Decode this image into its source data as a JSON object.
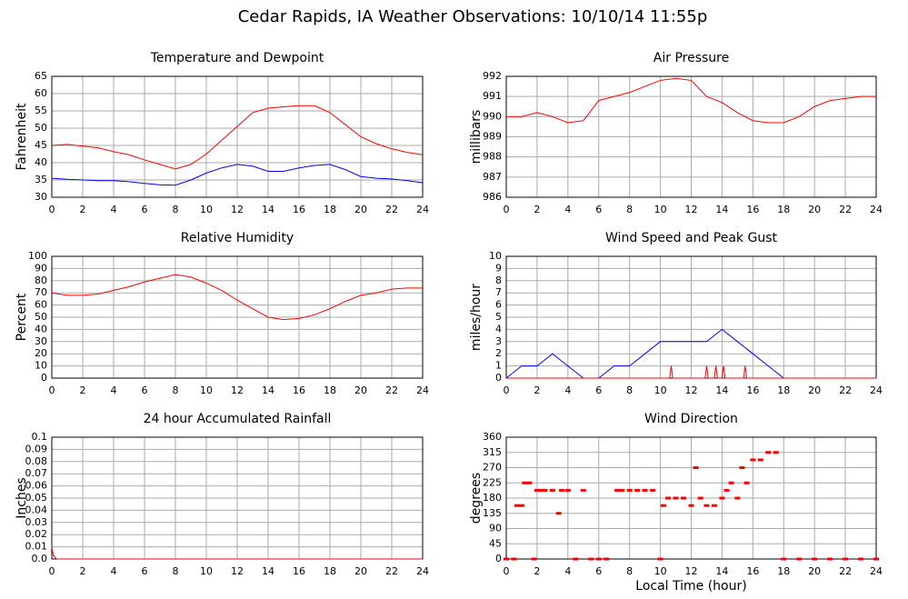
{
  "title": "Cedar Rapids, IA Weather Observations: 10/10/14 11:55p",
  "chart_data": [
    {
      "type": "line",
      "title": "Temperature and Dewpoint",
      "ylabel": "Fahrenheit",
      "x": [
        0,
        1,
        2,
        3,
        4,
        5,
        6,
        7,
        8,
        9,
        10,
        11,
        12,
        13,
        14,
        15,
        16,
        17,
        18,
        19,
        20,
        21,
        22,
        23,
        24
      ],
      "series": [
        {
          "color": "#ff0000",
          "values": [
            45,
            45.3,
            44.8,
            44.3,
            43.2,
            42.3,
            40.8,
            39.5,
            38.2,
            39.5,
            42.5,
            46.5,
            50.5,
            54.5,
            55.8,
            56.2,
            56.5,
            56.5,
            54.5,
            51,
            47.5,
            45.5,
            44,
            43,
            42.3
          ]
        },
        {
          "color": "#0000ff",
          "values": [
            35.5,
            35.2,
            35,
            34.8,
            34.8,
            34.5,
            34,
            33.6,
            33.5,
            35,
            37,
            38.5,
            39.5,
            39,
            37.5,
            37.5,
            38.5,
            39.2,
            39.5,
            38,
            36,
            35.5,
            35.3,
            34.8,
            34.2
          ]
        }
      ],
      "xlim": [
        0,
        24
      ],
      "xticks": [
        0,
        2,
        4,
        6,
        8,
        10,
        12,
        14,
        16,
        18,
        20,
        22,
        24
      ],
      "ylim": [
        30,
        65
      ],
      "yticks": [
        30,
        35,
        40,
        45,
        50,
        55,
        60,
        65
      ],
      "grid": true
    },
    {
      "type": "line",
      "title": "Air Pressure",
      "ylabel": "millibars",
      "x": [
        0,
        1,
        2,
        3,
        4,
        5,
        6,
        7,
        8,
        9,
        10,
        11,
        12,
        13,
        14,
        15,
        16,
        17,
        18,
        19,
        20,
        21,
        22,
        23,
        24
      ],
      "series": [
        {
          "color": "#ff0000",
          "values": [
            990,
            990,
            990.2,
            990,
            989.7,
            989.8,
            990.8,
            991,
            991.2,
            991.5,
            991.8,
            991.9,
            991.8,
            991,
            990.7,
            990.2,
            989.8,
            989.7,
            989.7,
            990,
            990.5,
            990.8,
            990.9,
            991,
            991
          ]
        }
      ],
      "xlim": [
        0,
        24
      ],
      "xticks": [
        0,
        2,
        4,
        6,
        8,
        10,
        12,
        14,
        16,
        18,
        20,
        22,
        24
      ],
      "ylim": [
        986,
        992
      ],
      "yticks": [
        986,
        987,
        988,
        989,
        990,
        991,
        992
      ],
      "grid": true
    },
    {
      "type": "line",
      "title": "Relative Humidity",
      "ylabel": "Percent",
      "x": [
        0,
        1,
        2,
        3,
        4,
        5,
        6,
        7,
        8,
        9,
        10,
        11,
        12,
        13,
        14,
        15,
        16,
        17,
        18,
        19,
        20,
        21,
        22,
        23,
        24
      ],
      "series": [
        {
          "color": "#ff0000",
          "values": [
            70,
            68,
            68,
            69,
            72,
            75,
            79,
            82,
            85,
            83,
            78,
            72,
            64,
            57,
            50,
            48,
            49,
            52,
            57,
            63,
            68,
            70,
            73,
            74,
            74
          ]
        }
      ],
      "xlim": [
        0,
        24
      ],
      "xticks": [
        0,
        2,
        4,
        6,
        8,
        10,
        12,
        14,
        16,
        18,
        20,
        22,
        24
      ],
      "ylim": [
        0,
        100
      ],
      "yticks": [
        0,
        10,
        20,
        30,
        40,
        50,
        60,
        70,
        80,
        90,
        100
      ],
      "grid": true
    },
    {
      "type": "line",
      "title": "Wind Speed and Peak Gust",
      "ylabel": "miles/hour",
      "series": [
        {
          "color": "#0000ff",
          "x": [
            0,
            1,
            2,
            3,
            4,
            5,
            6,
            7,
            8,
            9,
            10,
            11,
            12,
            13,
            14,
            15,
            16,
            17,
            18,
            19,
            20,
            21,
            22,
            23,
            24
          ],
          "values": [
            0,
            1,
            1,
            2,
            1,
            0,
            0,
            1,
            1,
            2,
            3,
            3,
            3,
            3,
            4,
            3,
            2,
            1,
            0,
            0,
            0,
            0,
            0,
            0,
            0
          ]
        },
        {
          "color": "#ff0000",
          "x": [
            0,
            10.6,
            10.7,
            10.8,
            12.9,
            13,
            13.1,
            13.5,
            13.6,
            13.7,
            14,
            14.1,
            14.2,
            15.4,
            15.5,
            15.6,
            24
          ],
          "values": [
            0,
            0,
            1,
            0,
            0,
            1,
            0,
            0,
            1,
            0,
            0,
            1,
            0,
            0,
            1,
            0,
            0
          ]
        }
      ],
      "xlim": [
        0,
        24
      ],
      "xticks": [
        0,
        2,
        4,
        6,
        8,
        10,
        12,
        14,
        16,
        18,
        20,
        22,
        24
      ],
      "ylim": [
        0,
        10
      ],
      "yticks": [
        0,
        1,
        2,
        3,
        4,
        5,
        6,
        7,
        8,
        9,
        10
      ],
      "grid": true
    },
    {
      "type": "line",
      "title": "24 hour Accumulated Rainfall",
      "ylabel": "Inches",
      "x": [
        0,
        0.1,
        0.3,
        24
      ],
      "series": [
        {
          "color": "#ff0000",
          "values": [
            0.01,
            0.003,
            0,
            0
          ]
        }
      ],
      "xlim": [
        0,
        24
      ],
      "xticks": [
        0,
        2,
        4,
        6,
        8,
        10,
        12,
        14,
        16,
        18,
        20,
        22,
        24
      ],
      "ylim": [
        0,
        0.1
      ],
      "yticks": [
        {
          "value": 0,
          "label": "0.0"
        },
        0.01,
        0.02,
        0.03,
        0.04,
        0.05,
        0.06,
        0.07,
        0.08,
        0.09,
        0.1
      ],
      "grid": true
    },
    {
      "type": "scatter",
      "title": "Wind Direction",
      "ylabel": "degrees",
      "xlabel": "Local Time (hour)",
      "x": [
        0,
        0.5,
        0.7,
        1,
        1.2,
        1.5,
        1.8,
        2,
        2.3,
        2.5,
        3,
        3.4,
        3.6,
        4,
        4.5,
        5,
        5.5,
        6,
        6.5,
        7.2,
        7.5,
        8,
        8.5,
        9,
        9.5,
        10,
        10.2,
        10.5,
        11,
        11.5,
        12,
        12.3,
        12.6,
        13,
        13.5,
        14,
        14.3,
        14.6,
        15,
        15.3,
        15.6,
        16,
        16.5,
        17,
        17.5,
        18,
        19,
        20,
        21,
        22,
        23,
        24
      ],
      "series": [
        {
          "color": "#ff0000",
          "values": [
            0,
            0,
            158,
            158,
            225,
            225,
            0,
            203,
            203,
            203,
            203,
            135,
            203,
            203,
            0,
            203,
            0,
            0,
            0,
            203,
            203,
            203,
            203,
            203,
            203,
            0,
            158,
            180,
            180,
            180,
            158,
            270,
            180,
            158,
            158,
            180,
            203,
            225,
            180,
            270,
            225,
            293,
            293,
            315,
            315,
            0,
            0,
            0,
            0,
            0,
            0,
            0
          ]
        }
      ],
      "xlim": [
        0,
        24
      ],
      "xticks": [
        0,
        2,
        4,
        6,
        8,
        10,
        12,
        14,
        16,
        18,
        20,
        22,
        24
      ],
      "ylim": [
        0,
        360
      ],
      "yticks": [
        0,
        45,
        90,
        135,
        180,
        225,
        270,
        315,
        360
      ],
      "grid": true
    }
  ]
}
